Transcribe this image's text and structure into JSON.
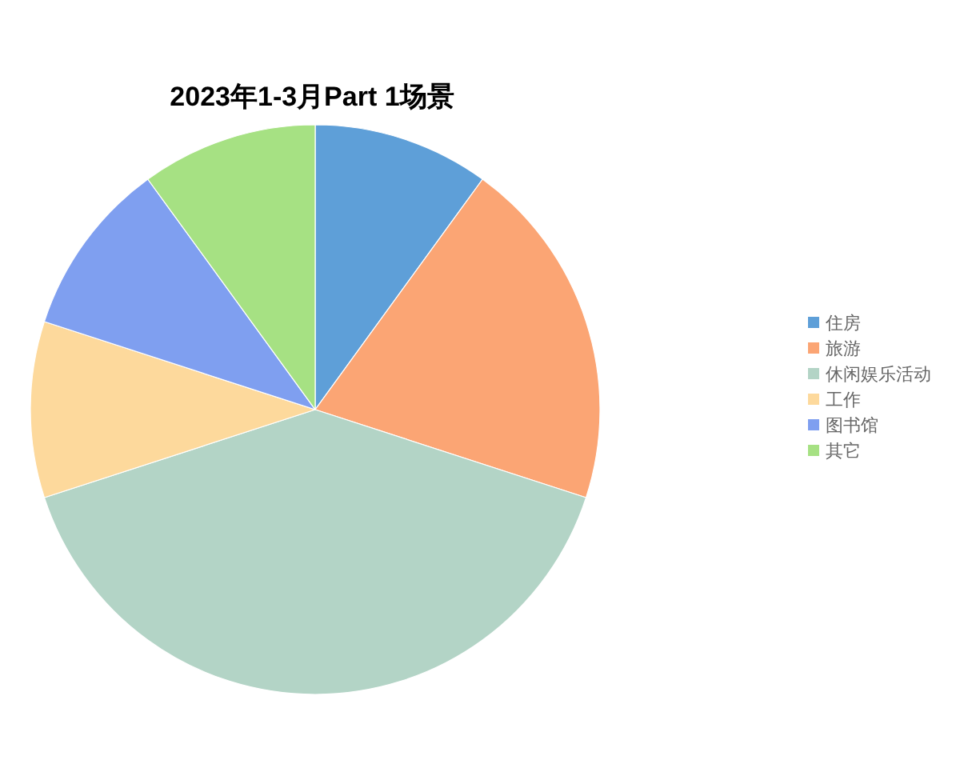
{
  "chart_data": {
    "type": "pie",
    "title": "2023年1-3月Part 1场景",
    "categories": [
      "住房",
      "旅游",
      "休闲娱乐活动",
      "工作",
      "图书馆",
      "其它"
    ],
    "values": [
      10,
      20,
      40,
      10,
      10,
      10
    ],
    "colors": [
      "#5e9fd8",
      "#fba574",
      "#b3d4c6",
      "#fdd99c",
      "#7f9ff0",
      "#a6e183"
    ],
    "legend": "right"
  }
}
